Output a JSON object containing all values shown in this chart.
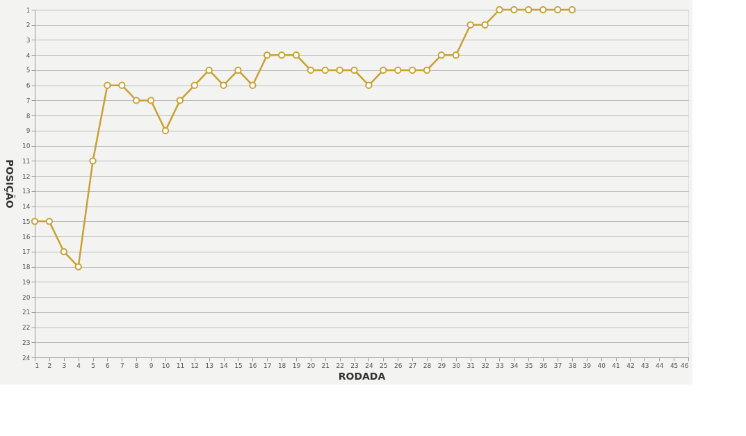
{
  "chart_data": {
    "type": "line",
    "xlabel": "RODADA",
    "ylabel": "POSIÇÃO",
    "x": [
      1,
      2,
      3,
      4,
      5,
      6,
      7,
      8,
      9,
      10,
      11,
      12,
      13,
      14,
      15,
      16,
      17,
      18,
      19,
      20,
      21,
      22,
      23,
      24,
      25,
      26,
      27,
      28,
      29,
      30,
      31,
      32,
      33,
      34,
      35,
      36,
      37,
      38
    ],
    "series": [
      {
        "color": "#c9a032",
        "values": [
          15,
          15,
          17,
          18,
          11,
          6,
          6,
          7,
          7,
          9,
          7,
          6,
          5,
          6,
          5,
          6,
          4,
          4,
          4,
          5,
          5,
          5,
          5,
          6,
          5,
          5,
          5,
          5,
          4,
          4,
          2,
          2,
          1,
          1,
          1,
          1,
          1,
          1
        ]
      }
    ],
    "xlim": [
      1,
      46
    ],
    "xticks": [
      1,
      2,
      3,
      4,
      5,
      6,
      7,
      8,
      9,
      10,
      11,
      12,
      13,
      14,
      15,
      16,
      17,
      18,
      19,
      20,
      21,
      22,
      23,
      24,
      25,
      26,
      27,
      28,
      29,
      30,
      31,
      32,
      33,
      34,
      35,
      36,
      37,
      38,
      39,
      40,
      41,
      42,
      43,
      44,
      45,
      46
    ],
    "ylim": [
      24,
      1
    ],
    "yticks": [
      1,
      2,
      3,
      4,
      5,
      6,
      7,
      8,
      9,
      10,
      11,
      12,
      13,
      14,
      15,
      16,
      17,
      18,
      19,
      20,
      21,
      22,
      23,
      24
    ],
    "grid": "y",
    "marker": "circle",
    "line_style": "solid"
  }
}
